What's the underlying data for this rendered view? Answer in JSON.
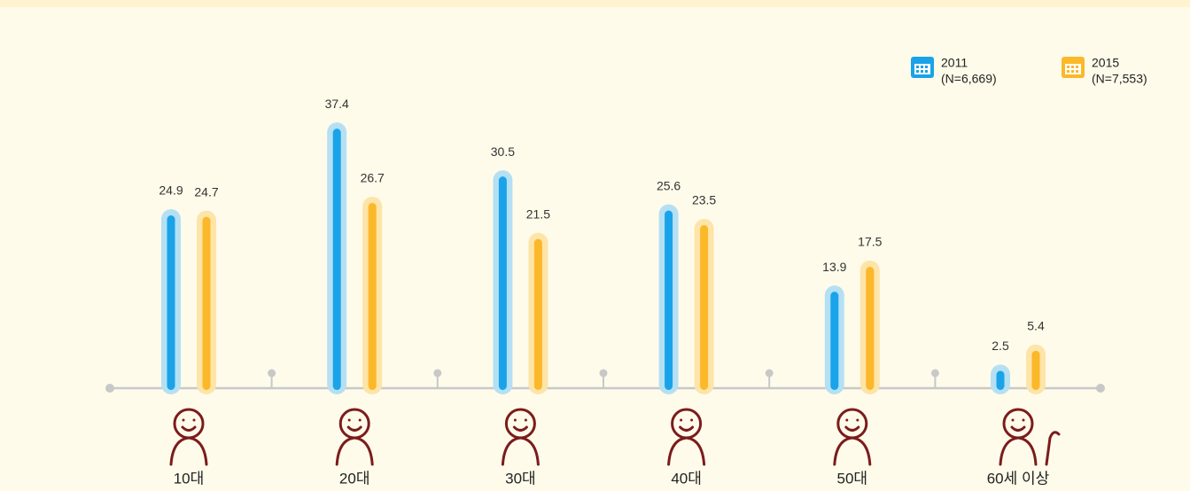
{
  "chart_data": {
    "type": "bar",
    "categories": [
      "10대",
      "20대",
      "30대",
      "40대",
      "50대",
      "60세 이상"
    ],
    "series": [
      {
        "name": "2011",
        "note": "(N=6,669)",
        "color": "#1aa3e8",
        "halo": "#b5e0f4",
        "values": [
          24.9,
          37.4,
          30.5,
          25.6,
          13.9,
          2.5
        ]
      },
      {
        "name": "2015",
        "note": "(N=7,553)",
        "color": "#fbb829",
        "halo": "#fde4a8",
        "values": [
          24.7,
          26.7,
          21.5,
          23.5,
          17.5,
          5.4
        ]
      }
    ]
  }
}
